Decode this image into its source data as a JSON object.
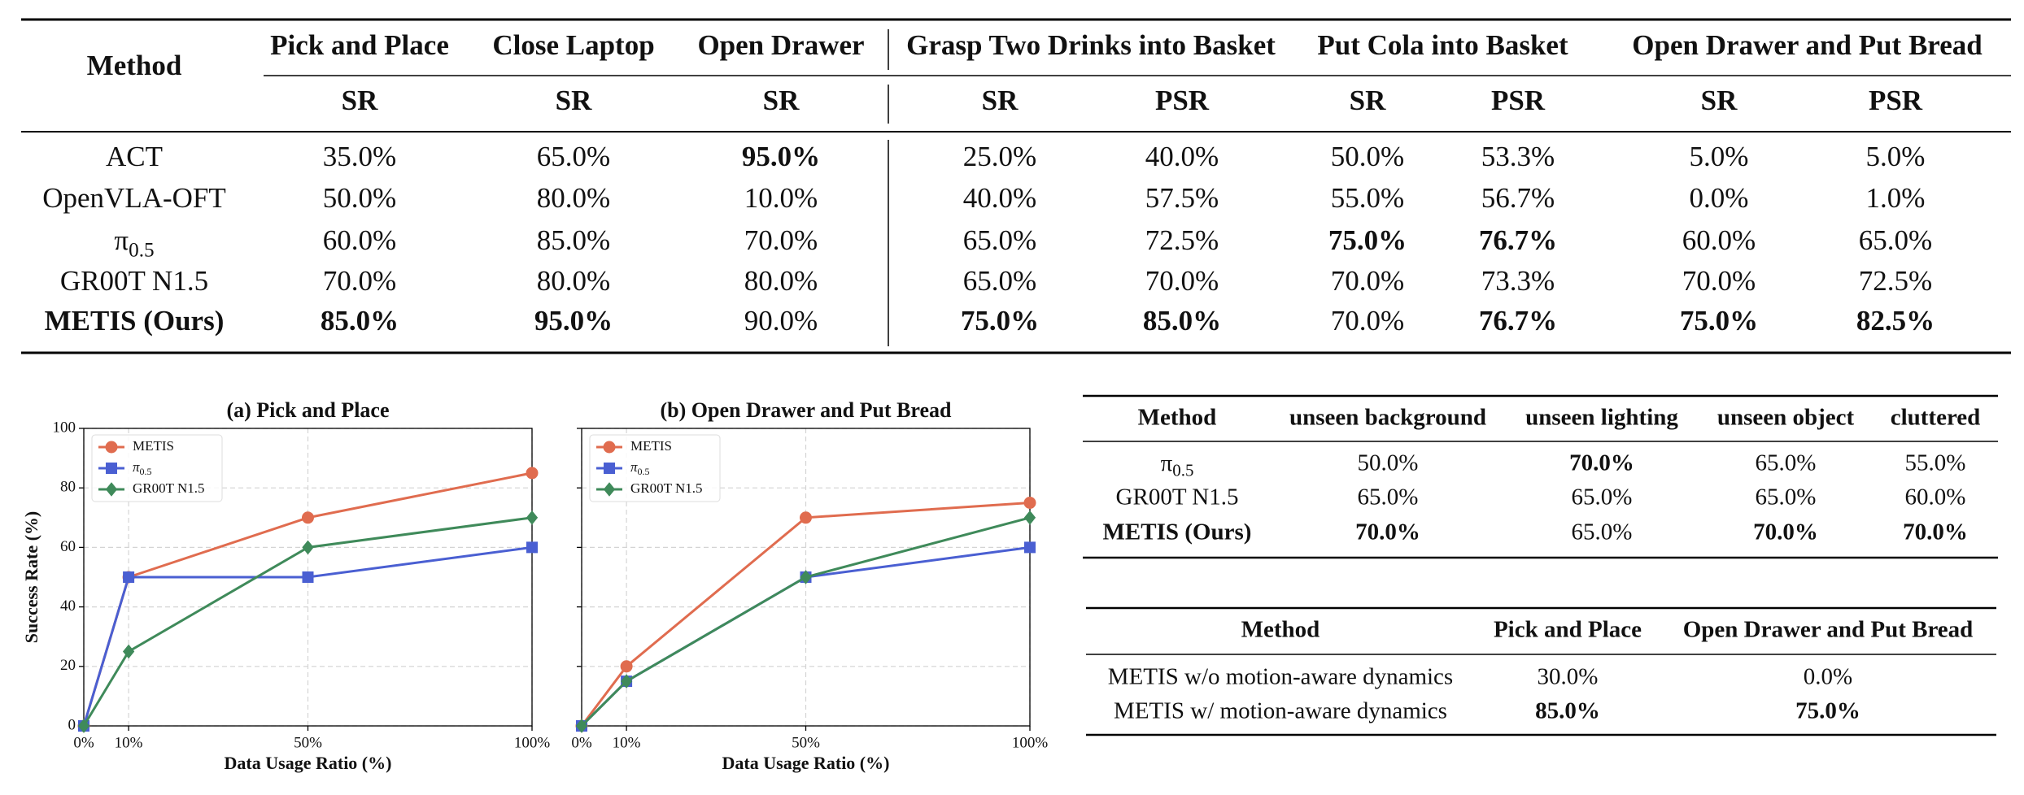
{
  "table1": {
    "header": {
      "method": "Method",
      "groups": [
        {
          "title": "Pick and Place",
          "cols": [
            "SR"
          ]
        },
        {
          "title": "Close Laptop",
          "cols": [
            "SR"
          ]
        },
        {
          "title": "Open Drawer",
          "cols": [
            "SR"
          ]
        },
        {
          "title": "Grasp Two Drinks into Basket",
          "cols": [
            "SR",
            "PSR"
          ]
        },
        {
          "title": "Put Cola into Basket",
          "cols": [
            "SR",
            "PSR"
          ]
        },
        {
          "title": "Open Drawer and Put Bread",
          "cols": [
            "SR",
            "PSR"
          ]
        }
      ]
    },
    "rows": [
      {
        "method": "ACT",
        "values": [
          "35.0%",
          "65.0%",
          "95.0%",
          "25.0%",
          "40.0%",
          "50.0%",
          "53.3%",
          "5.0%",
          "5.0%"
        ],
        "bold": [
          2
        ]
      },
      {
        "method": "OpenVLA-OFT",
        "values": [
          "50.0%",
          "80.0%",
          "10.0%",
          "40.0%",
          "57.5%",
          "55.0%",
          "56.7%",
          "0.0%",
          "1.0%"
        ],
        "bold": []
      },
      {
        "method": {
          "text": "π",
          "sub": "0.5"
        },
        "values": [
          "60.0%",
          "85.0%",
          "70.0%",
          "65.0%",
          "72.5%",
          "75.0%",
          "76.7%",
          "60.0%",
          "65.0%"
        ],
        "bold": [
          5,
          6
        ]
      },
      {
        "method": "GR00T N1.5",
        "values": [
          "70.0%",
          "80.0%",
          "80.0%",
          "65.0%",
          "70.0%",
          "70.0%",
          "73.3%",
          "70.0%",
          "72.5%"
        ],
        "bold": []
      },
      {
        "method": "METIS (Ours)",
        "method_bold": true,
        "values": [
          "85.0%",
          "95.0%",
          "90.0%",
          "75.0%",
          "85.0%",
          "70.0%",
          "76.7%",
          "75.0%",
          "82.5%"
        ],
        "bold": [
          0,
          1,
          3,
          4,
          6,
          7,
          8
        ]
      }
    ]
  },
  "chart_data": [
    {
      "type": "line",
      "title": "(a) Pick and Place",
      "xlabel": "Data Usage Ratio (%)",
      "ylabel": "Success Rate (%)",
      "x": [
        0,
        10,
        50,
        100
      ],
      "xlim": [
        0,
        100
      ],
      "ylim": [
        0,
        100
      ],
      "xticks": [
        {
          "value": 0,
          "label": "0%"
        },
        {
          "value": 10,
          "label": "10%"
        },
        {
          "value": 50,
          "label": "50%"
        },
        {
          "value": 100,
          "label": "100%"
        }
      ],
      "yticks": [
        0,
        20,
        40,
        60,
        80,
        100
      ],
      "ytick_labels": true,
      "grid": true,
      "legend": "upper left",
      "series": [
        {
          "name": "METIS",
          "color": "#e06c4f",
          "marker": "circle",
          "values": [
            0,
            50,
            70,
            85
          ]
        },
        {
          "name": "π",
          "name_sub": "0.5",
          "color": "#4a5fd2",
          "marker": "square",
          "values": [
            0,
            50,
            50,
            60
          ]
        },
        {
          "name": "GR00T N1.5",
          "color": "#3f8a5a",
          "marker": "diamond",
          "values": [
            0,
            25,
            60,
            70
          ]
        }
      ]
    },
    {
      "type": "line",
      "title": "(b) Open Drawer and Put Bread",
      "xlabel": "Data Usage Ratio (%)",
      "x": [
        0,
        10,
        50,
        100
      ],
      "xlim": [
        0,
        100
      ],
      "ylim": [
        0,
        100
      ],
      "xticks": [
        {
          "value": 0,
          "label": "0%"
        },
        {
          "value": 10,
          "label": "10%"
        },
        {
          "value": 50,
          "label": "50%"
        },
        {
          "value": 100,
          "label": "100%"
        }
      ],
      "yticks": [
        0,
        20,
        40,
        60,
        80,
        100
      ],
      "ytick_labels": false,
      "grid": true,
      "legend": "upper left",
      "series": [
        {
          "name": "METIS",
          "color": "#e06c4f",
          "marker": "circle",
          "values": [
            0,
            20,
            70,
            75
          ]
        },
        {
          "name": "π",
          "name_sub": "0.5",
          "color": "#4a5fd2",
          "marker": "square",
          "values": [
            0,
            15,
            50,
            60
          ]
        },
        {
          "name": "GR00T N1.5",
          "color": "#3f8a5a",
          "marker": "diamond",
          "values": [
            0,
            15,
            50,
            70
          ]
        }
      ]
    }
  ],
  "table2": {
    "header": [
      "Method",
      "unseen background",
      "unseen lighting",
      "unseen object",
      "cluttered"
    ],
    "rows": [
      {
        "method": {
          "text": "π",
          "sub": "0.5"
        },
        "values": [
          "50.0%",
          "70.0%",
          "65.0%",
          "55.0%"
        ],
        "bold": [
          1
        ]
      },
      {
        "method": "GR00T N1.5",
        "values": [
          "65.0%",
          "65.0%",
          "65.0%",
          "60.0%"
        ],
        "bold": []
      },
      {
        "method": "METIS (Ours)",
        "method_bold": true,
        "values": [
          "70.0%",
          "65.0%",
          "70.0%",
          "70.0%"
        ],
        "bold": [
          0,
          2,
          3
        ]
      }
    ]
  },
  "table3": {
    "header": [
      "Method",
      "Pick and Place",
      "Open Drawer and Put Bread"
    ],
    "rows": [
      {
        "method": "METIS w/o motion-aware dynamics",
        "values": [
          "30.0%",
          "0.0%"
        ],
        "bold": []
      },
      {
        "method": "METIS w/ motion-aware dynamics",
        "values": [
          "85.0%",
          "75.0%"
        ],
        "bold": [
          0,
          1
        ]
      }
    ]
  }
}
